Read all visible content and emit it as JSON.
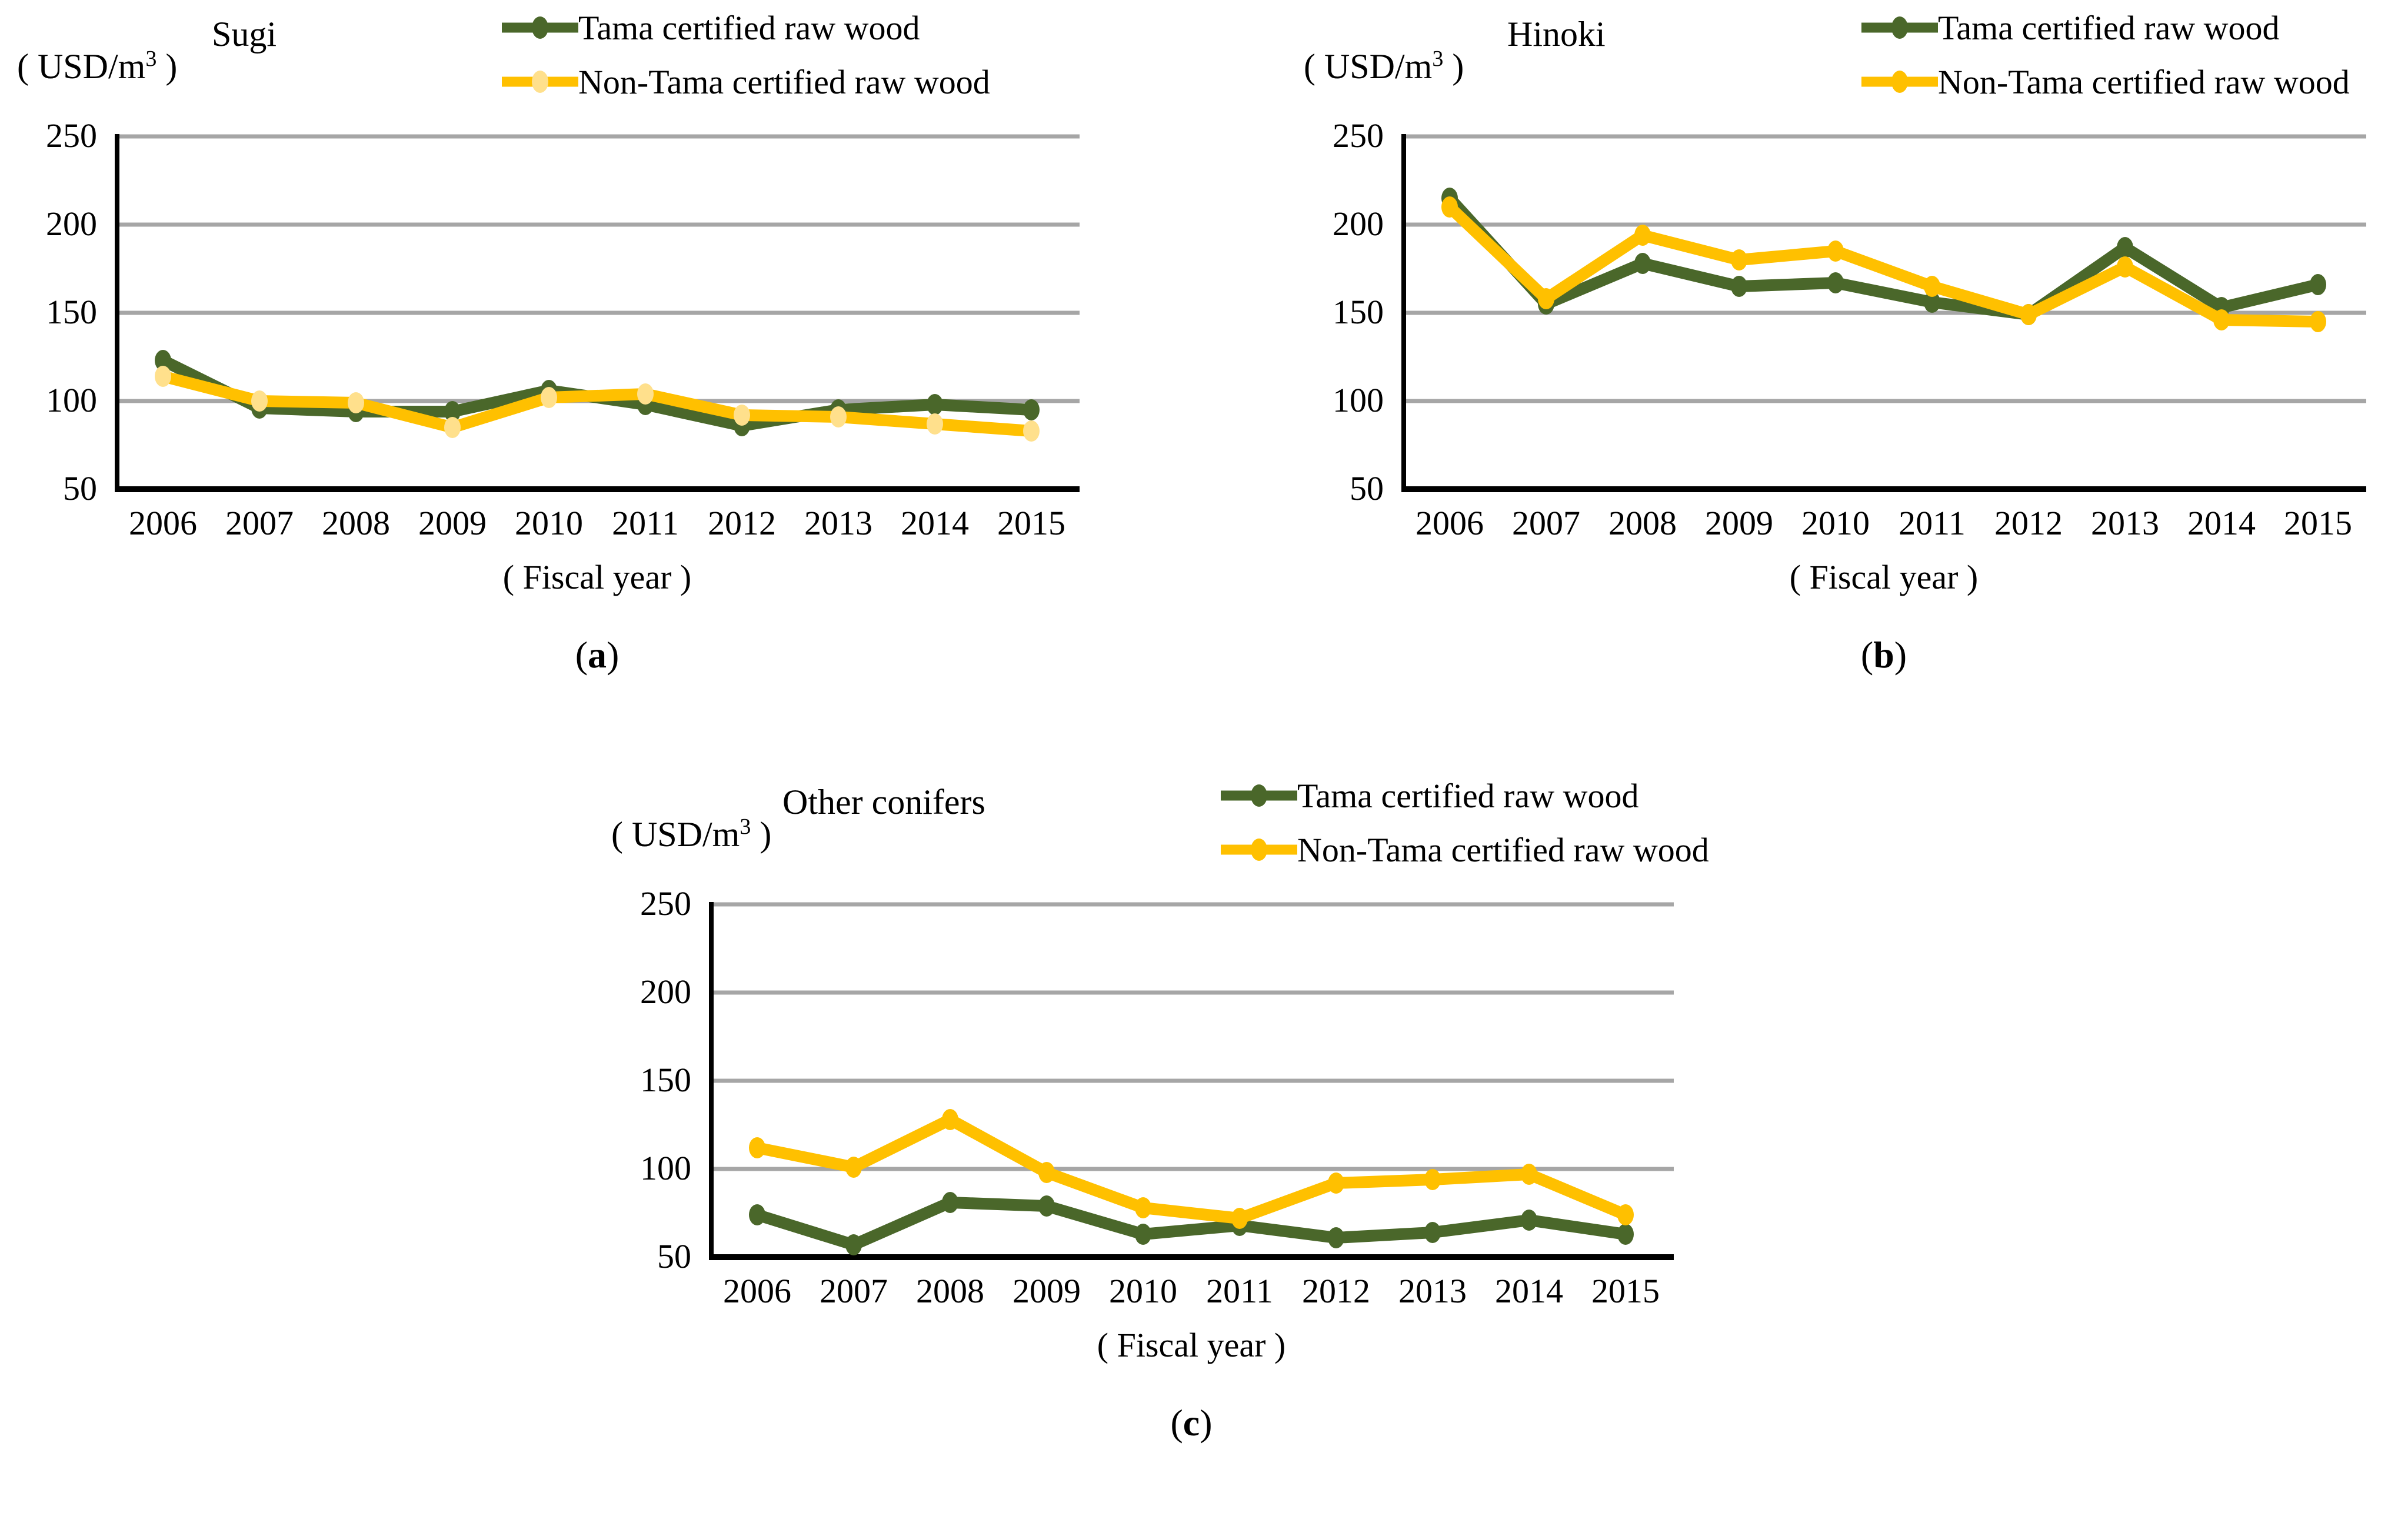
{
  "figure": {
    "colors": {
      "tama_green": "#4A672A",
      "non_tama_yellow": "#FFC000",
      "non_tama_marker_light_yellow": "#FFE08C",
      "gridline_gray": "#A6A6A6",
      "axis_black": "#000000",
      "background": "#FFFFFF"
    }
  },
  "chart_data": [
    {
      "type": "line",
      "title": "Sugi",
      "unit": {
        "prefix": "( USD/m",
        "sup": "3",
        "suffix": " )"
      },
      "xlabel": "( Fiscal year )",
      "caption": {
        "open": "(",
        "letter": "a",
        "close": ")"
      },
      "categories": [
        "2006",
        "2007",
        "2008",
        "2009",
        "2010",
        "2011",
        "2012",
        "2013",
        "2014",
        "2015"
      ],
      "ylim": [
        50,
        250
      ],
      "yticks": [
        250,
        200,
        150,
        100,
        50
      ],
      "grid": true,
      "legend_position": "top-right",
      "series": [
        {
          "name": "Tama certified raw wood",
          "color": "#4A672A",
          "marker_color": "#4A672A",
          "values": [
            123,
            96,
            94,
            94,
            106,
            98,
            86,
            95,
            98,
            95
          ]
        },
        {
          "name": "Non-Tama certified raw wood",
          "color": "#FFC000",
          "marker_color": "#FFE08C",
          "values": [
            114,
            100,
            99,
            85,
            102,
            104,
            92,
            91,
            87,
            83
          ]
        }
      ]
    },
    {
      "type": "line",
      "title": "Hinoki",
      "unit": {
        "prefix": "( USD/m",
        "sup": "3",
        "suffix": " )"
      },
      "xlabel": "( Fiscal year )",
      "caption": {
        "open": "(",
        "letter": "b",
        "close": ")"
      },
      "categories": [
        "2006",
        "2007",
        "2008",
        "2009",
        "2010",
        "2011",
        "2012",
        "2013",
        "2014",
        "2015"
      ],
      "ylim": [
        50,
        250
      ],
      "yticks": [
        250,
        200,
        150,
        100,
        50
      ],
      "grid": true,
      "legend_position": "top-right",
      "series": [
        {
          "name": "Tama certified raw wood",
          "color": "#4A672A",
          "marker_color": "#4A672A",
          "values": [
            215,
            155,
            178,
            165,
            167,
            156,
            149,
            187,
            153,
            166
          ]
        },
        {
          "name": "Non-Tama certified raw wood",
          "color": "#FFC000",
          "marker_color": "#FFC000",
          "values": [
            210,
            158,
            194,
            180,
            185,
            165,
            149,
            176,
            146,
            145
          ]
        }
      ]
    },
    {
      "type": "line",
      "title": "Other conifers",
      "unit": {
        "prefix": "( USD/m",
        "sup": "3",
        "suffix": " )"
      },
      "xlabel": "( Fiscal year )",
      "caption": {
        "open": "(",
        "letter": "c",
        "close": ")"
      },
      "categories": [
        "2006",
        "2007",
        "2008",
        "2009",
        "2010",
        "2011",
        "2012",
        "2013",
        "2014",
        "2015"
      ],
      "ylim": [
        50,
        250
      ],
      "yticks": [
        250,
        200,
        150,
        100,
        50
      ],
      "grid": true,
      "legend_position": "top-right",
      "series": [
        {
          "name": "Tama certified raw wood",
          "color": "#4A672A",
          "marker_color": "#4A672A",
          "values": [
            74,
            57,
            81,
            79,
            63,
            68,
            61,
            64,
            71,
            63
          ]
        },
        {
          "name": "Non-Tama certified raw wood",
          "color": "#FFC000",
          "marker_color": "#FFC000",
          "values": [
            112,
            101,
            128,
            98,
            78,
            72,
            92,
            94,
            97,
            74
          ]
        }
      ]
    }
  ]
}
